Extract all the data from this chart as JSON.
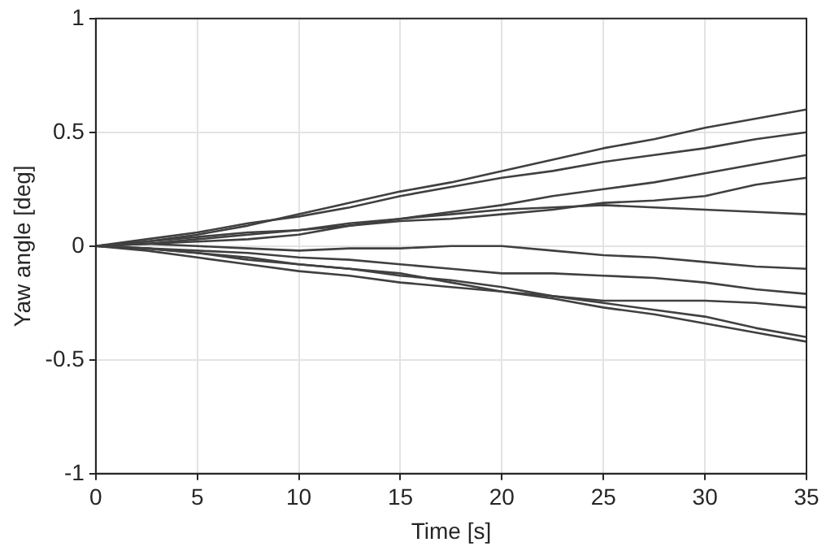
{
  "chart_data": {
    "type": "line",
    "xlabel": "Time [s]",
    "ylabel": "Yaw angle [deg]",
    "x": [
      0,
      2.5,
      5,
      7.5,
      10,
      12.5,
      15,
      17.5,
      20,
      22.5,
      25,
      27.5,
      30,
      32.5,
      35
    ],
    "xlim": [
      0,
      35
    ],
    "xticks": [
      0,
      5,
      10,
      15,
      20,
      25,
      30,
      35
    ],
    "ylim": [
      -1,
      1
    ],
    "yticks": [
      -1,
      -0.5,
      0,
      0.5,
      1
    ],
    "grid": true,
    "legend": false,
    "marker": "none",
    "line_style": "solid",
    "series": [
      {
        "color": "#404040",
        "values": [
          0,
          0.02,
          0.05,
          0.09,
          0.14,
          0.19,
          0.24,
          0.28,
          0.33,
          0.38,
          0.43,
          0.47,
          0.52,
          0.56,
          0.6
        ]
      },
      {
        "color": "#404040",
        "values": [
          0,
          0.03,
          0.06,
          0.1,
          0.13,
          0.17,
          0.22,
          0.26,
          0.3,
          0.33,
          0.37,
          0.4,
          0.43,
          0.47,
          0.5
        ]
      },
      {
        "color": "#404040",
        "values": [
          0,
          0.01,
          0.03,
          0.05,
          0.07,
          0.1,
          0.12,
          0.15,
          0.18,
          0.22,
          0.25,
          0.28,
          0.32,
          0.36,
          0.4
        ]
      },
      {
        "color": "#404040",
        "values": [
          0,
          0.02,
          0.04,
          0.06,
          0.07,
          0.09,
          0.11,
          0.12,
          0.14,
          0.16,
          0.19,
          0.2,
          0.22,
          0.27,
          0.3
        ]
      },
      {
        "color": "#404040",
        "values": [
          0,
          0.01,
          0.02,
          0.03,
          0.05,
          0.09,
          0.12,
          0.14,
          0.16,
          0.17,
          0.18,
          0.17,
          0.16,
          0.15,
          0.14
        ]
      },
      {
        "color": "#404040",
        "values": [
          0,
          0.01,
          0,
          -0.01,
          -0.02,
          -0.01,
          -0.01,
          0,
          0,
          -0.02,
          -0.04,
          -0.05,
          -0.07,
          -0.09,
          -0.1
        ]
      },
      {
        "color": "#404040",
        "values": [
          0,
          -0.01,
          -0.02,
          -0.03,
          -0.05,
          -0.06,
          -0.08,
          -0.1,
          -0.12,
          -0.12,
          -0.13,
          -0.14,
          -0.16,
          -0.19,
          -0.21
        ]
      },
      {
        "color": "#404040",
        "values": [
          0,
          -0.01,
          -0.03,
          -0.05,
          -0.08,
          -0.1,
          -0.12,
          -0.16,
          -0.2,
          -0.22,
          -0.24,
          -0.24,
          -0.24,
          -0.25,
          -0.27
        ]
      },
      {
        "color": "#404040",
        "values": [
          0,
          -0.01,
          -0.03,
          -0.06,
          -0.08,
          -0.1,
          -0.13,
          -0.15,
          -0.18,
          -0.22,
          -0.25,
          -0.28,
          -0.31,
          -0.36,
          -0.4
        ]
      },
      {
        "color": "#404040",
        "values": [
          0,
          -0.02,
          -0.05,
          -0.08,
          -0.11,
          -0.13,
          -0.16,
          -0.18,
          -0.2,
          -0.23,
          -0.27,
          -0.3,
          -0.34,
          -0.38,
          -0.42
        ]
      }
    ]
  }
}
